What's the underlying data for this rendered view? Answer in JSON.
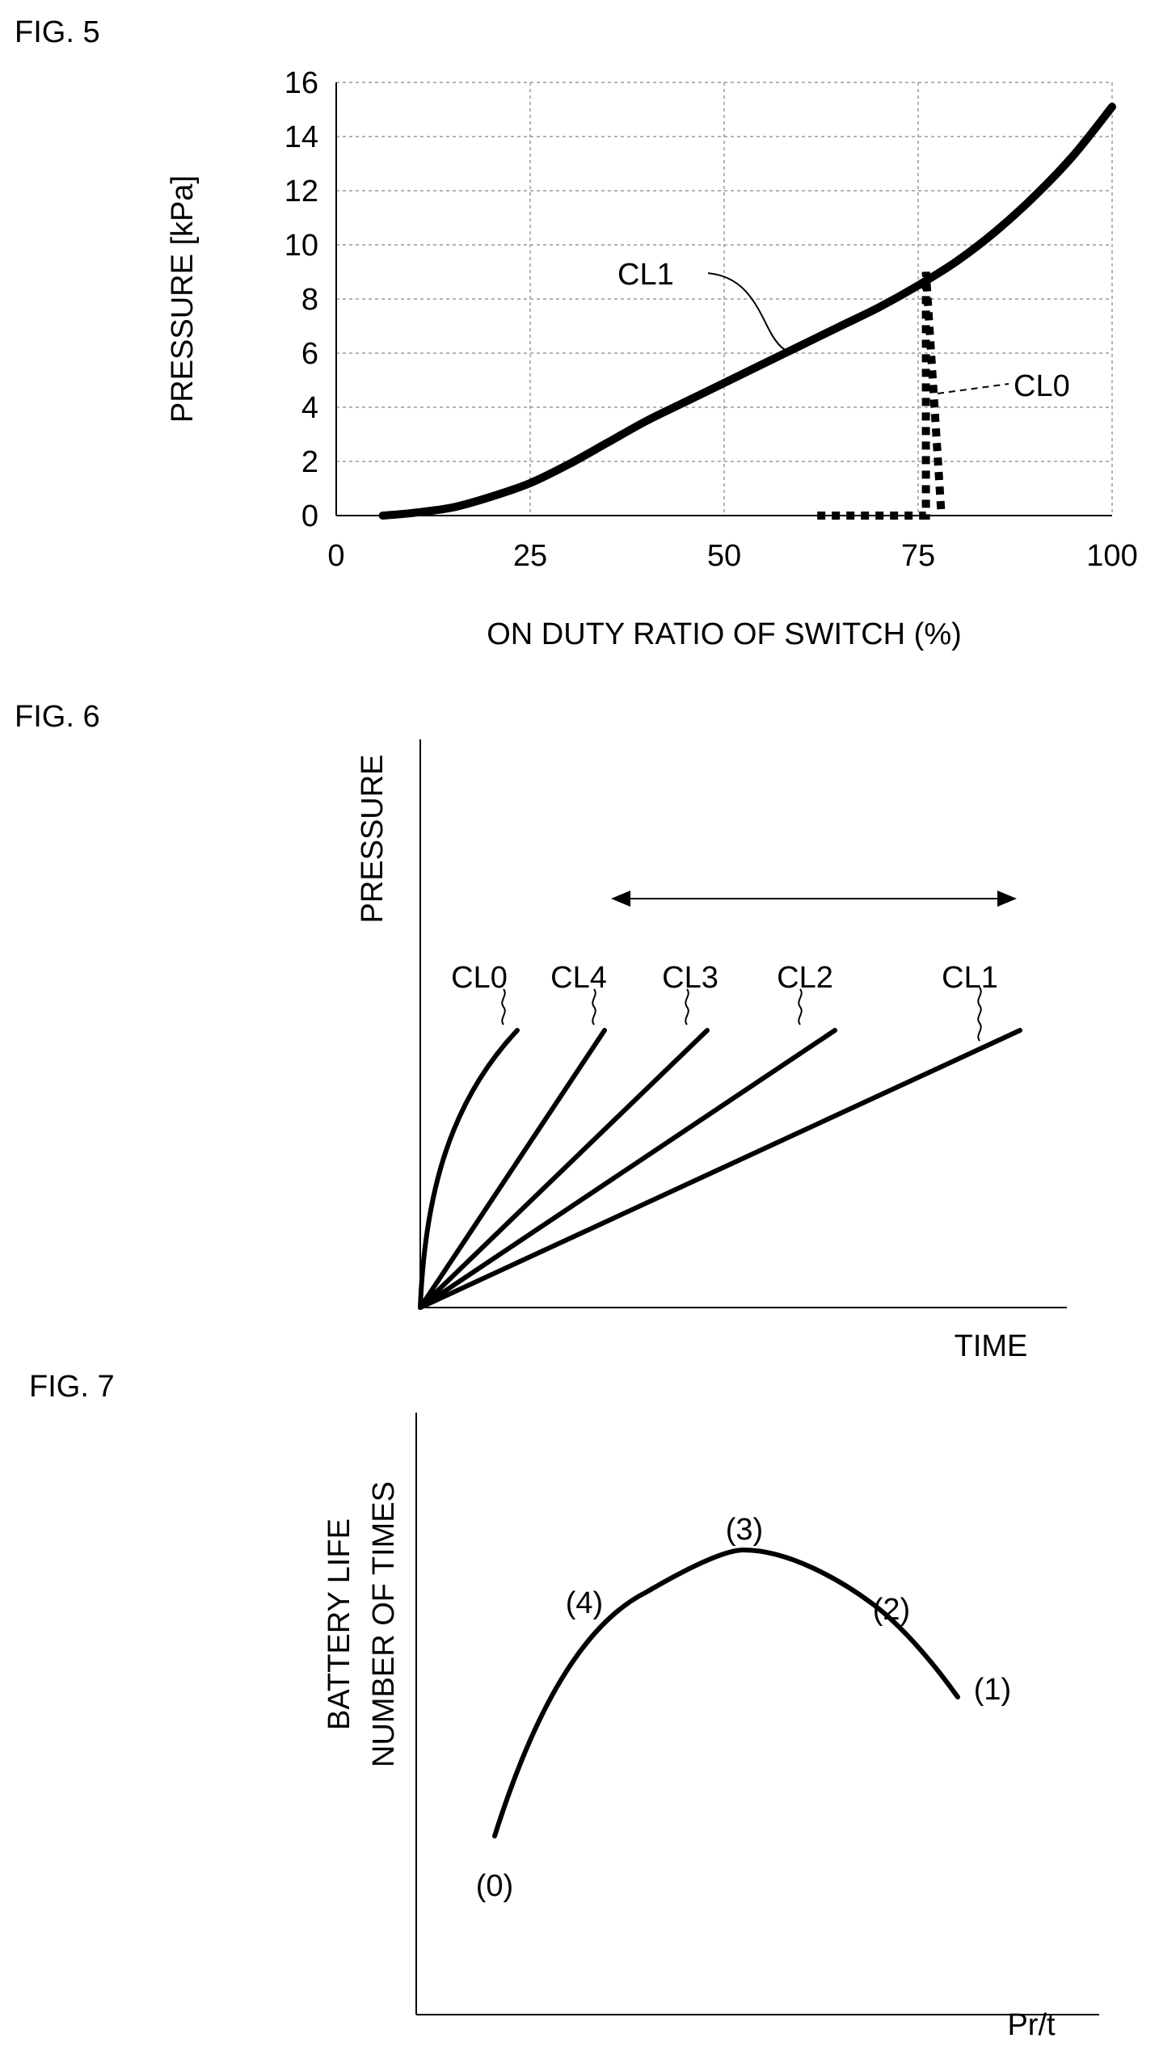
{
  "figures": {
    "fig5": {
      "label": "FIG. 5"
    },
    "fig6": {
      "label": "FIG. 6"
    },
    "fig7": {
      "label": "FIG. 7"
    }
  },
  "chart_data": [
    {
      "type": "line",
      "xlabel": "ON DUTY RATIO OF SWITCH (%)",
      "ylabel": "PRESSURE [kPa]",
      "xlim": [
        0,
        100
      ],
      "ylim": [
        0,
        16
      ],
      "x_ticks": [
        "0",
        "25",
        "50",
        "75",
        "100"
      ],
      "y_ticks": [
        "0",
        "2",
        "4",
        "6",
        "8",
        "10",
        "12",
        "14",
        "16"
      ],
      "grid": true,
      "series": [
        {
          "name": "CL1",
          "style": "solid",
          "x": [
            6,
            10,
            15,
            20,
            25,
            30,
            35,
            40,
            45,
            50,
            55,
            60,
            65,
            70,
            75,
            80,
            85,
            90,
            95,
            100
          ],
          "y": [
            0,
            0.1,
            0.3,
            0.7,
            1.2,
            1.9,
            2.7,
            3.5,
            4.2,
            4.9,
            5.6,
            6.3,
            7.0,
            7.7,
            8.5,
            9.4,
            10.5,
            11.8,
            13.3,
            15.1
          ]
        },
        {
          "name": "CL0",
          "style": "dotted",
          "x": [
            62,
            70,
            76,
            76,
            76,
            78
          ],
          "y": [
            0,
            0,
            0,
            4.5,
            9.0,
            0
          ]
        }
      ]
    },
    {
      "type": "line",
      "xlabel": "TIME",
      "ylabel": "PRESSURE",
      "series": [
        {
          "name": "CL0",
          "shape": "concave"
        },
        {
          "name": "CL4",
          "shape": "linear"
        },
        {
          "name": "CL3",
          "shape": "linear"
        },
        {
          "name": "CL2",
          "shape": "linear"
        },
        {
          "name": "CL1",
          "shape": "linear"
        }
      ]
    },
    {
      "type": "line",
      "xlabel": "Pr/t",
      "ylabel_lines": [
        "BATTERY LIFE",
        "NUMBER OF TIMES"
      ],
      "points": [
        {
          "label": "(0)"
        },
        {
          "label": "(4)"
        },
        {
          "label": "(3)"
        },
        {
          "label": "(2)"
        },
        {
          "label": "(1)"
        }
      ]
    }
  ]
}
